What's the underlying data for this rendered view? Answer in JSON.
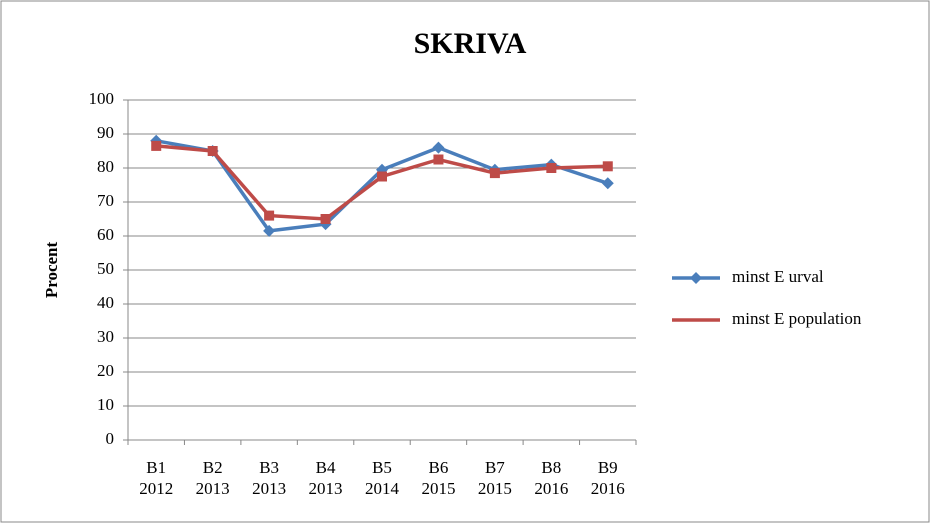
{
  "chart_data": {
    "type": "line",
    "title": "SKRIVA",
    "y_label": "Procent",
    "categories": [
      [
        "B1",
        "2012"
      ],
      [
        "B2",
        "2013"
      ],
      [
        "B3",
        "2013"
      ],
      [
        "B4",
        "2013"
      ],
      [
        "B5",
        "2014"
      ],
      [
        "B6",
        "2015"
      ],
      [
        "B7",
        "2015"
      ],
      [
        "B8",
        "2016"
      ],
      [
        "B9",
        "2016"
      ]
    ],
    "series": [
      {
        "name": "minst E urval",
        "color": "#4a7ebb",
        "marker": "diamond",
        "values": [
          88,
          85,
          61.5,
          63.5,
          79.5,
          86,
          79.5,
          81,
          75.5
        ]
      },
      {
        "name": "minst E population",
        "color": "#be4b48",
        "marker": "square",
        "values": [
          86.5,
          85,
          66,
          65,
          77.5,
          82.5,
          78.5,
          80,
          80.5
        ]
      }
    ],
    "ylim": [
      0,
      100
    ],
    "yticks": [
      0,
      10,
      20,
      30,
      40,
      50,
      60,
      70,
      80,
      90,
      100
    ],
    "grid": true,
    "legend": "right"
  }
}
